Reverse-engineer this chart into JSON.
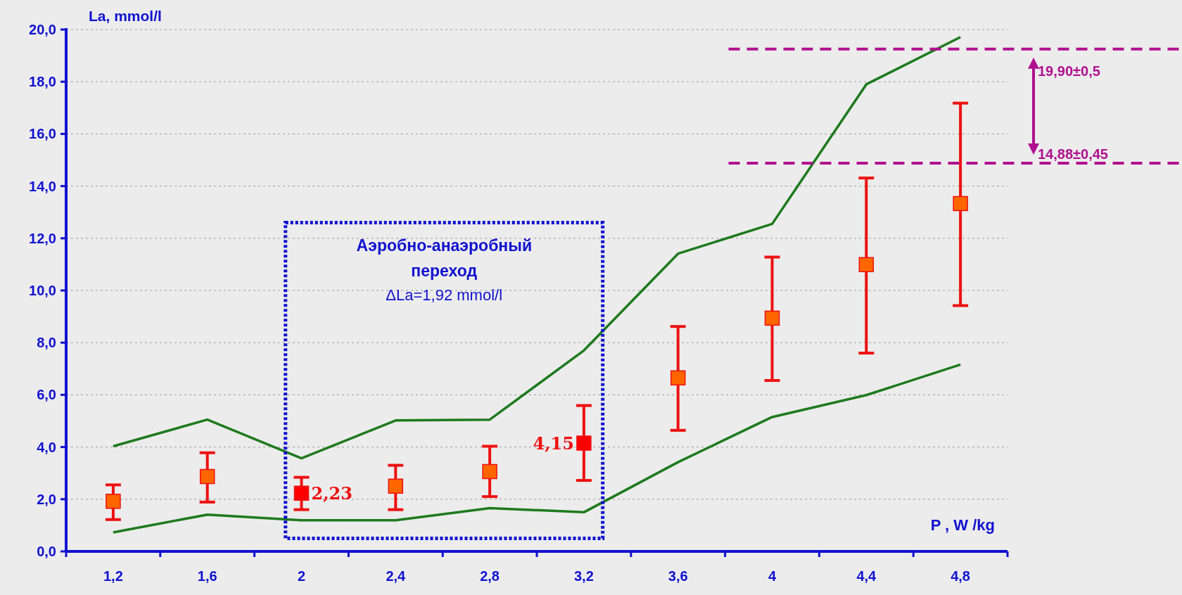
{
  "chart_data": {
    "type": "scatter",
    "xlabel": "P , W /kg",
    "ylabel": "La, mmol/l",
    "categories": [
      "1,2",
      "1,6",
      "2",
      "2,4",
      "2,8",
      "3,2",
      "3,6",
      "4",
      "4,4",
      "4,8"
    ],
    "series": [
      {
        "type": "line",
        "color": "#1e7a1e",
        "marker": "none",
        "values": [
          4.03,
          5.05,
          3.57,
          5.02,
          5.05,
          7.7,
          11.41,
          12.55,
          17.9,
          19.71
        ]
      },
      {
        "type": "line",
        "color": "#1e7a1e",
        "marker": "none",
        "values": [
          0.73,
          1.41,
          1.19,
          1.19,
          1.66,
          1.5,
          3.42,
          5.15,
          5.99,
          7.16
        ]
      },
      {
        "marker": "square",
        "color": "#ee1111",
        "colors": [
          "#ff6600",
          "#ff6600",
          "#ff0000",
          "#ff6600",
          "#ff6600",
          "#ff0000",
          "#ff6600",
          "#ff6600",
          "#ff6600",
          "#ff6600"
        ],
        "values": [
          1.92,
          2.87,
          2.23,
          2.5,
          3.06,
          4.15,
          6.65,
          8.94,
          10.99,
          13.33
        ],
        "errors": [
          [
            1.22,
            2.55
          ],
          [
            1.89,
            3.78
          ],
          [
            1.6,
            2.84
          ],
          [
            1.6,
            3.3
          ],
          [
            2.1,
            4.03
          ],
          [
            2.72,
            5.59
          ],
          [
            4.64,
            8.62
          ],
          [
            6.55,
            11.28
          ],
          [
            7.6,
            14.31
          ],
          [
            9.42,
            17.18
          ]
        ]
      }
    ],
    "ylim": [
      0,
      20
    ],
    "yticks": [
      {
        "value": 0,
        "label": "0,0"
      },
      {
        "value": 2,
        "label": "2,0"
      },
      {
        "value": 4,
        "label": "4,0"
      },
      {
        "value": 6,
        "label": "6,0"
      },
      {
        "value": 8,
        "label": "8,0"
      },
      {
        "value": 10,
        "label": "10,0"
      },
      {
        "value": 12,
        "label": "12,0"
      },
      {
        "value": 14,
        "label": "14,0"
      },
      {
        "value": 16,
        "label": "16,0"
      },
      {
        "value": 18,
        "label": "18,0"
      },
      {
        "value": 20,
        "label": "20,0"
      }
    ],
    "grid": "y",
    "ref_lines": [
      {
        "axis": "y",
        "value": 19.25,
        "color": "#b0108f",
        "line_style": "dashed"
      },
      {
        "axis": "y",
        "value": 14.88,
        "label": "14,88±0,45",
        "color": "#b0108f",
        "line_style": "dashed"
      }
    ],
    "annotations": [
      "Аэробно-анаэробный переход",
      "ΔLa=1,92 mmol/l",
      "19,90±0,5",
      {
        "text": "2,23",
        "x": "2",
        "y": 2.23
      },
      {
        "text": "4,15",
        "x": "3,2",
        "y": 4.15
      }
    ]
  }
}
